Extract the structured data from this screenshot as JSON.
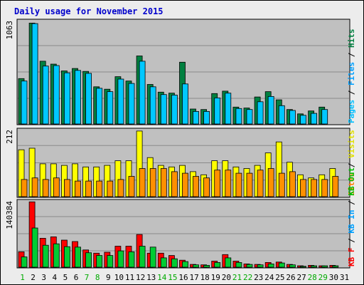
{
  "chart_data": {
    "type": "bar",
    "title": "Daily usage for November 2015",
    "categories": [
      "1",
      "2",
      "3",
      "4",
      "5",
      "6",
      "7",
      "8",
      "9",
      "10",
      "11",
      "12",
      "13",
      "14",
      "15",
      "16",
      "17",
      "18",
      "19",
      "20",
      "21",
      "22",
      "23",
      "24",
      "25",
      "26",
      "27",
      "28",
      "29",
      "30",
      "31"
    ],
    "weekend_days": [
      1,
      7,
      8,
      14,
      15,
      21,
      22,
      28,
      29
    ],
    "colors": {
      "background": "#ececec",
      "plot": "#c0c0c0",
      "title": "#0000cc",
      "hits": "#008040",
      "files": "#00c0ff",
      "pages": "#00ffff",
      "visits": "#ffff00",
      "sites": "#ff8000",
      "kbytes": "#ff0000",
      "kb_in": "#00e060",
      "kb_out": "#00c000",
      "weekend_label": "#00aa00",
      "weekday_label": "#000000"
    },
    "panels": [
      {
        "id": "hits-files-pages",
        "max_label": "1063",
        "ymax": 1063,
        "labels": [
          {
            "text": "Pages",
            "color": "#00c0ff"
          },
          {
            "text": " / ",
            "color": "#000000"
          },
          {
            "text": "Files",
            "color": "#00a0ff"
          },
          {
            "text": " / ",
            "color": "#000000"
          },
          {
            "text": "Hits",
            "color": "#008040"
          }
        ],
        "series": [
          {
            "name": "Hits",
            "color": "#008040",
            "values": [
              470,
              1045,
              650,
              620,
              550,
              575,
              545,
              385,
              360,
              490,
              445,
              705,
              410,
              330,
              320,
              640,
              155,
              150,
              315,
              340,
              175,
              165,
              280,
              335,
              250,
              150,
              105,
              135,
              175,
              0,
              0
            ]
          },
          {
            "name": "Files",
            "color": "#00c8ff",
            "values": [
              445,
              1040,
              600,
              605,
              530,
              555,
              525,
              370,
              335,
              465,
              420,
              650,
              385,
              305,
              300,
              415,
              130,
              130,
              270,
              320,
              160,
              150,
              230,
              285,
              190,
              140,
              90,
              110,
              150,
              0,
              0
            ]
          }
        ]
      },
      {
        "id": "visits-sites",
        "max_label": "212",
        "ymax": 212,
        "labels": [
          {
            "text": "Sites",
            "color": "#ff8000"
          },
          {
            "text": " / ",
            "color": "#000000"
          },
          {
            "text": "Visits",
            "color": "#e0e000"
          }
        ],
        "series": [
          {
            "name": "Visits",
            "color": "#ffff00",
            "values": [
              150,
              155,
              105,
              105,
              100,
              105,
              95,
              95,
              100,
              115,
              115,
              210,
              125,
              100,
              95,
              100,
              80,
              70,
              115,
              115,
              95,
              90,
              100,
              140,
              175,
              110,
              70,
              60,
              70,
              90,
              0
            ]
          },
          {
            "name": "Sites",
            "color": "#ff9000",
            "values": [
              55,
              60,
              55,
              60,
              55,
              50,
              50,
              50,
              50,
              55,
              65,
              90,
              90,
              90,
              80,
              75,
              65,
              60,
              85,
              85,
              75,
              75,
              85,
              90,
              75,
              80,
              55,
              55,
              55,
              65,
              0
            ]
          }
        ]
      },
      {
        "id": "kbytes",
        "max_label": "140384",
        "ymax": 140384,
        "labels": [
          {
            "text": "KB F",
            "color": "#ff0000"
          },
          {
            "text": " / ",
            "color": "#000000"
          },
          {
            "text": "KB In",
            "color": "#00a0ff"
          },
          {
            "text": " / ",
            "color": "#000000"
          },
          {
            "text": "KB Out",
            "color": "#00c000"
          }
        ],
        "series": [
          {
            "name": "KB F",
            "color": "#ff0000",
            "values": [
              33000,
              140000,
              62000,
              65000,
              58000,
              55000,
              37000,
              30000,
              32000,
              45000,
              45000,
              70000,
              30000,
              30000,
              25000,
              15000,
              6000,
              5000,
              13000,
              27000,
              13000,
              7000,
              6000,
              10000,
              11000,
              6000,
              3000,
              4000,
              3000,
              4000,
              0
            ]
          },
          {
            "name": "KB Out",
            "color": "#00cc33",
            "values": [
              22000,
              84000,
              47000,
              50000,
              44000,
              43000,
              31000,
              25000,
              25000,
              35000,
              33000,
              45000,
              43000,
              20000,
              18000,
              12000,
              5000,
              4000,
              10000,
              20000,
              10000,
              6000,
              5000,
              7000,
              9000,
              5000,
              2000,
              3000,
              3000,
              3000,
              0
            ]
          }
        ]
      }
    ]
  }
}
